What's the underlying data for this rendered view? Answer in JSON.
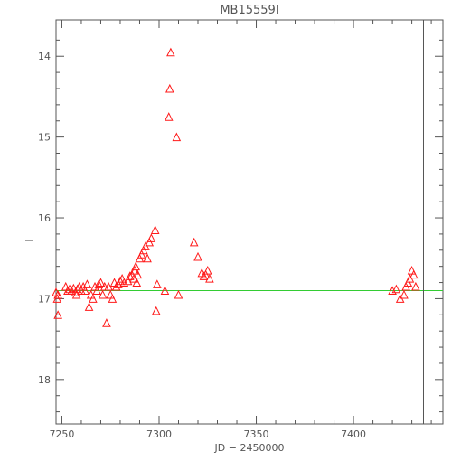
{
  "chart_data": {
    "type": "scatter",
    "title": "MB15559I",
    "xlabel": "JD − 2450000",
    "ylabel": "I",
    "xlim": [
      7247,
      7446
    ],
    "ylim": [
      18.55,
      13.55
    ],
    "y_inverted": true,
    "grid": false,
    "x_ticks": [
      7250,
      7300,
      7350,
      7400
    ],
    "y_ticks": [
      14,
      15,
      16,
      17,
      18
    ],
    "marker": "triangle",
    "colors": {
      "points": "#ff1a1a",
      "baseline": "#33cc33",
      "axes": "#555555"
    },
    "baseline": {
      "x": [
        7247,
        7446
      ],
      "y": [
        16.9,
        16.9
      ]
    },
    "vertical_line": {
      "x": 7436
    },
    "points": [
      [
        7247,
        16.92
      ],
      [
        7247.6,
        17.0
      ],
      [
        7248,
        17.2
      ],
      [
        7248,
        16.95
      ],
      [
        7252,
        16.85
      ],
      [
        7253,
        16.9
      ],
      [
        7254,
        16.88
      ],
      [
        7255,
        16.9
      ],
      [
        7256,
        16.87
      ],
      [
        7257,
        16.92
      ],
      [
        7257.5,
        16.95
      ],
      [
        7258,
        16.88
      ],
      [
        7259,
        16.85
      ],
      [
        7260,
        16.9
      ],
      [
        7261,
        16.85
      ],
      [
        7262,
        16.9
      ],
      [
        7263,
        16.82
      ],
      [
        7264,
        17.1
      ],
      [
        7265,
        16.95
      ],
      [
        7266,
        17.0
      ],
      [
        7267,
        16.85
      ],
      [
        7268,
        16.9
      ],
      [
        7269,
        16.82
      ],
      [
        7270,
        16.8
      ],
      [
        7271,
        16.95
      ],
      [
        7272,
        16.85
      ],
      [
        7273,
        17.3
      ],
      [
        7274,
        16.85
      ],
      [
        7275,
        16.95
      ],
      [
        7276,
        17.0
      ],
      [
        7277,
        16.8
      ],
      [
        7278,
        16.85
      ],
      [
        7279,
        16.82
      ],
      [
        7280,
        16.78
      ],
      [
        7281,
        16.75
      ],
      [
        7282,
        16.8
      ],
      [
        7284,
        16.78
      ],
      [
        7285,
        16.72
      ],
      [
        7286,
        16.7
      ],
      [
        7287,
        16.75
      ],
      [
        7287.5,
        16.65
      ],
      [
        7288,
        16.6
      ],
      [
        7288.5,
        16.8
      ],
      [
        7289,
        16.7
      ],
      [
        7290,
        16.5
      ],
      [
        7291,
        16.45
      ],
      [
        7292,
        16.4
      ],
      [
        7293,
        16.35
      ],
      [
        7294,
        16.5
      ],
      [
        7295,
        16.3
      ],
      [
        7296,
        16.25
      ],
      [
        7298,
        16.15
      ],
      [
        7298.5,
        17.15
      ],
      [
        7299,
        16.82
      ],
      [
        7303,
        16.9
      ],
      [
        7305,
        14.75
      ],
      [
        7305.5,
        14.4
      ],
      [
        7306,
        13.95
      ],
      [
        7309,
        15.0
      ],
      [
        7310,
        16.95
      ],
      [
        7318,
        16.3
      ],
      [
        7320,
        16.48
      ],
      [
        7322,
        16.68
      ],
      [
        7323,
        16.72
      ],
      [
        7324,
        16.7
      ],
      [
        7325,
        16.65
      ],
      [
        7326,
        16.75
      ],
      [
        7420,
        16.9
      ],
      [
        7422,
        16.88
      ],
      [
        7424,
        17.0
      ],
      [
        7426,
        16.95
      ],
      [
        7427,
        16.85
      ],
      [
        7428,
        16.8
      ],
      [
        7429,
        16.75
      ],
      [
        7430,
        16.65
      ],
      [
        7431,
        16.7
      ],
      [
        7432,
        16.85
      ]
    ]
  }
}
